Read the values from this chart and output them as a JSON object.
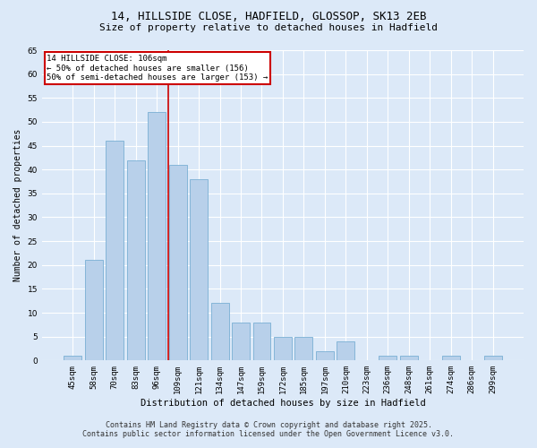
{
  "title_line1": "14, HILLSIDE CLOSE, HADFIELD, GLOSSOP, SK13 2EB",
  "title_line2": "Size of property relative to detached houses in Hadfield",
  "xlabel": "Distribution of detached houses by size in Hadfield",
  "ylabel": "Number of detached properties",
  "categories": [
    "45sqm",
    "58sqm",
    "70sqm",
    "83sqm",
    "96sqm",
    "109sqm",
    "121sqm",
    "134sqm",
    "147sqm",
    "159sqm",
    "172sqm",
    "185sqm",
    "197sqm",
    "210sqm",
    "223sqm",
    "236sqm",
    "248sqm",
    "261sqm",
    "274sqm",
    "286sqm",
    "299sqm"
  ],
  "values": [
    1,
    21,
    46,
    42,
    52,
    41,
    38,
    12,
    8,
    8,
    5,
    5,
    2,
    4,
    0,
    1,
    1,
    0,
    1,
    0,
    1
  ],
  "bar_color": "#b8d0ea",
  "bar_edge_color": "#7aafd4",
  "highlight_label": "14 HILLSIDE CLOSE: 106sqm",
  "annotation_line1": "← 50% of detached houses are smaller (156)",
  "annotation_line2": "50% of semi-detached houses are larger (153) →",
  "annotation_box_color": "#ffffff",
  "annotation_box_edge_color": "#cc0000",
  "vline_color": "#cc0000",
  "vline_x_index": 5,
  "ylim": [
    0,
    65
  ],
  "yticks": [
    0,
    5,
    10,
    15,
    20,
    25,
    30,
    35,
    40,
    45,
    50,
    55,
    60,
    65
  ],
  "background_color": "#dce9f8",
  "grid_color": "#ffffff",
  "footer_line1": "Contains HM Land Registry data © Crown copyright and database right 2025.",
  "footer_line2": "Contains public sector information licensed under the Open Government Licence v3.0."
}
